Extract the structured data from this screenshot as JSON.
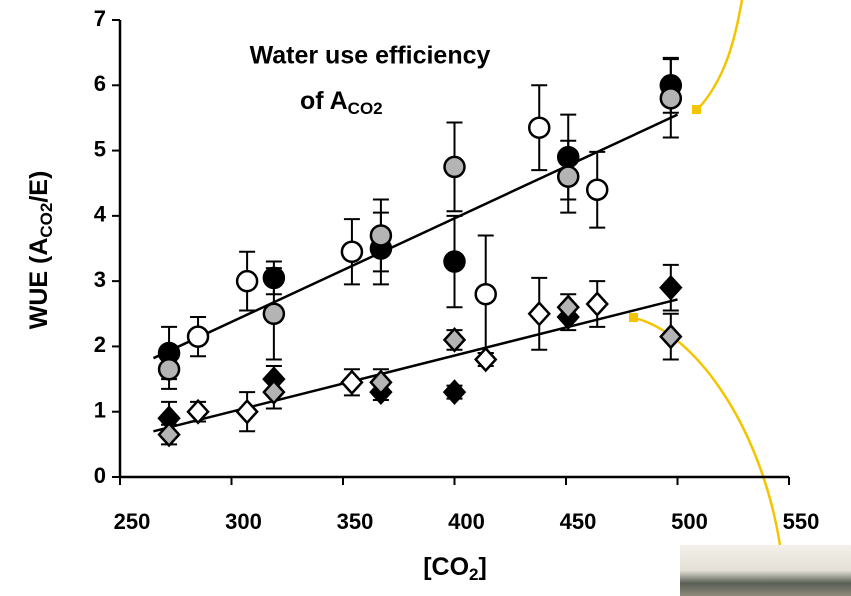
{
  "chart_data": {
    "type": "scatter",
    "title": "Water use efficiency",
    "title_line2": {
      "text": "of A",
      "sub": "CO2"
    },
    "y_label": {
      "text": "WUE (A",
      "sub": "CO2",
      "tail": "/E)"
    },
    "x_label": {
      "text": "[CO",
      "sub": "2",
      "tail": "]"
    },
    "xlim": [
      250,
      550
    ],
    "xticks": [
      250,
      300,
      350,
      400,
      450,
      500,
      550
    ],
    "ylim": [
      0,
      7
    ],
    "yticks": [
      0,
      1,
      2,
      3,
      4,
      5,
      6,
      7
    ],
    "series": [
      {
        "marker": "circle",
        "color": "#000000",
        "x": [
          272,
          319,
          367,
          400,
          451,
          497
        ],
        "values": [
          1.9,
          3.05,
          3.5,
          3.3,
          4.9,
          6.0
        ],
        "errors": [
          0.4,
          0.25,
          0.55,
          0.7,
          0.65,
          0.42
        ]
      },
      {
        "marker": "circle",
        "color": "#b4b4b4",
        "x": [
          272,
          319,
          367,
          400,
          451,
          497
        ],
        "values": [
          1.65,
          2.5,
          3.7,
          4.75,
          4.6,
          5.8
        ],
        "errors": [
          0.3,
          0.7,
          0.55,
          0.68,
          0.55,
          0.6
        ]
      },
      {
        "marker": "circle",
        "color": "#ffffff",
        "x": [
          285,
          307,
          354,
          414,
          438,
          464
        ],
        "values": [
          2.15,
          3.0,
          3.45,
          2.8,
          5.35,
          4.4
        ],
        "errors": [
          0.3,
          0.45,
          0.5,
          0.9,
          0.65,
          0.58
        ]
      },
      {
        "marker": "diamond",
        "color": "#000000",
        "x": [
          272,
          319,
          367,
          400,
          451,
          497
        ],
        "values": [
          0.9,
          1.5,
          1.3,
          1.3,
          2.45,
          2.9
        ],
        "errors": [
          0.25,
          0.2,
          0.12,
          0.1,
          0.2,
          0.35
        ]
      },
      {
        "marker": "diamond",
        "color": "#b4b4b4",
        "x": [
          272,
          319,
          367,
          400,
          451,
          497
        ],
        "values": [
          0.65,
          1.3,
          1.45,
          2.1,
          2.6,
          2.15
        ],
        "errors": [
          0.15,
          0.25,
          0.2,
          0.15,
          0.2,
          0.35
        ]
      },
      {
        "marker": "diamond",
        "color": "#ffffff",
        "x": [
          285,
          307,
          354,
          414,
          438,
          464
        ],
        "values": [
          1.0,
          1.0,
          1.45,
          1.8,
          2.5,
          2.65
        ],
        "errors": [
          0.15,
          0.3,
          0.2,
          0.1,
          0.55,
          0.35
        ]
      }
    ],
    "trendlines": [
      {
        "x": [
          265,
          500
        ],
        "values": [
          1.82,
          5.55
        ]
      },
      {
        "x": [
          265,
          500
        ],
        "values": [
          0.7,
          2.72
        ]
      }
    ]
  }
}
